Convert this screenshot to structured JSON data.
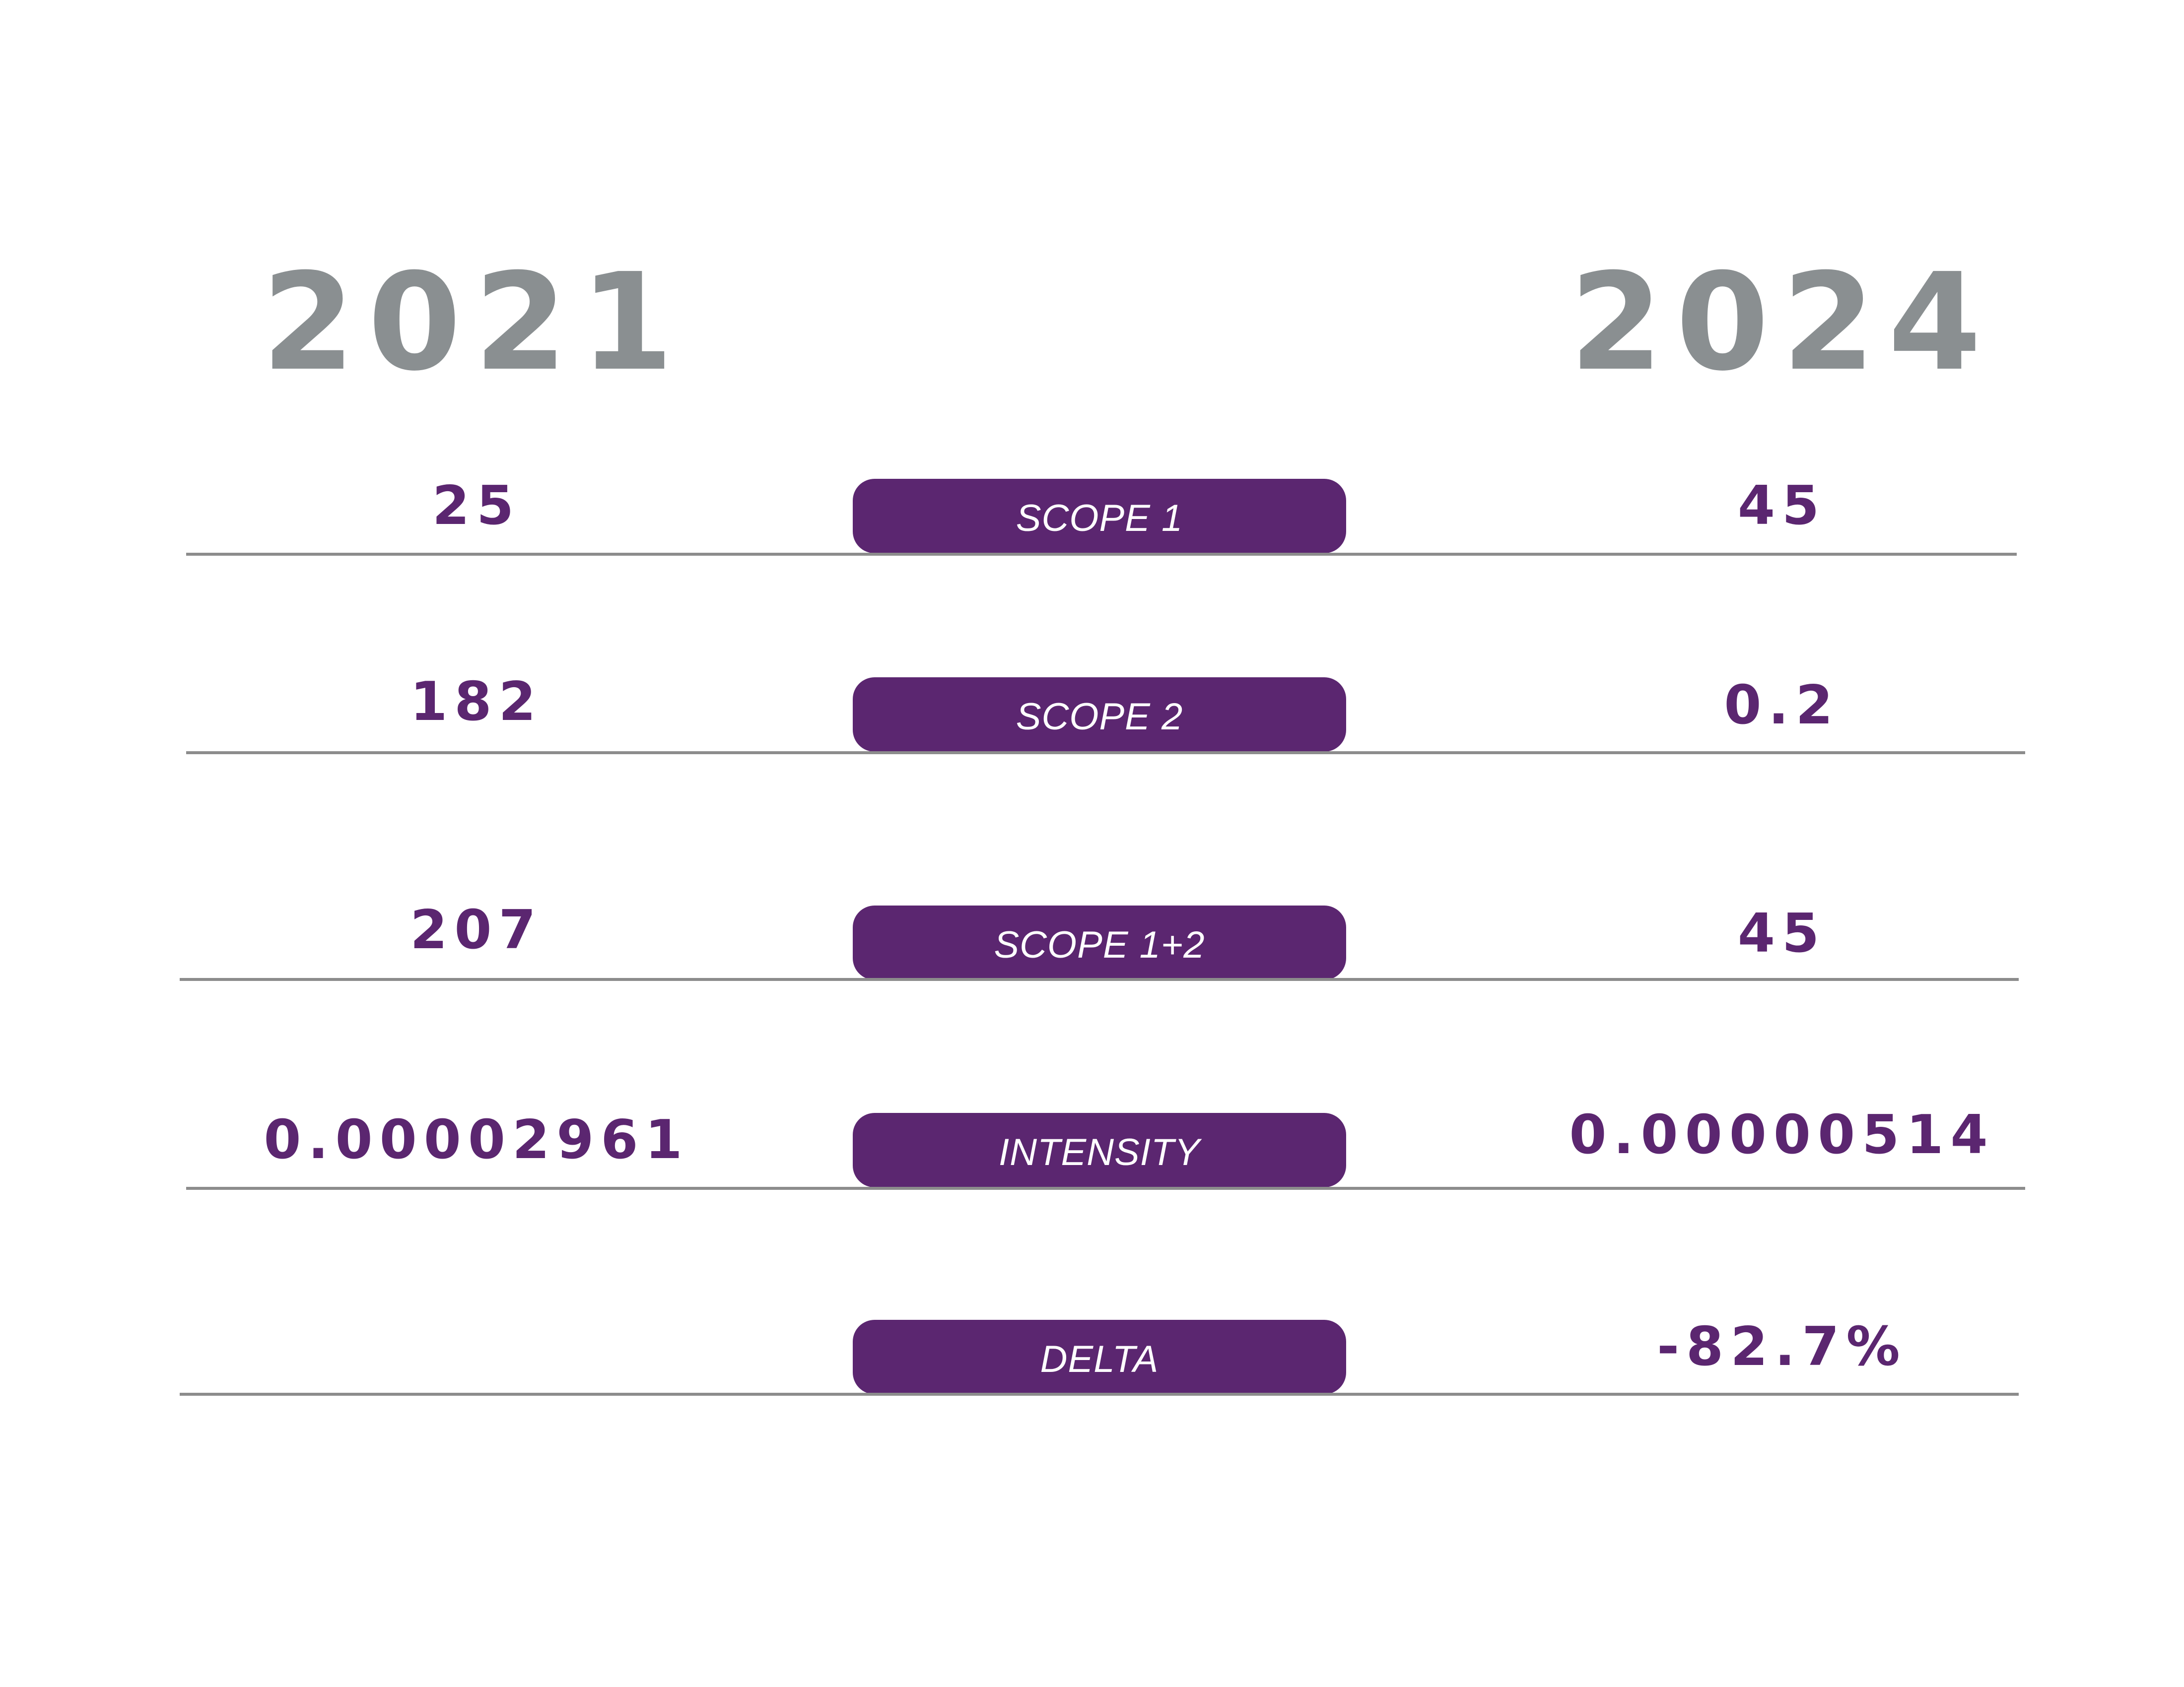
{
  "chart_data": {
    "type": "table",
    "columns": [
      "2021",
      "2024"
    ],
    "rows": [
      {
        "label": "SCOPE 1",
        "values": [
          "25",
          "45"
        ]
      },
      {
        "label": "SCOPE 2",
        "values": [
          "182",
          "0.2"
        ]
      },
      {
        "label": "SCOPE 1+2",
        "values": [
          "207",
          "45"
        ]
      },
      {
        "label": "INTENSITY",
        "values": [
          "0.00002961",
          "0.00000514"
        ]
      },
      {
        "label": "DELTA",
        "values": [
          "",
          "-82.7%"
        ]
      }
    ]
  },
  "colors": {
    "accent": "#5b2670",
    "year": "#8a8f91",
    "rule": "#8c8c8c",
    "pill_text": "#ffffff"
  }
}
